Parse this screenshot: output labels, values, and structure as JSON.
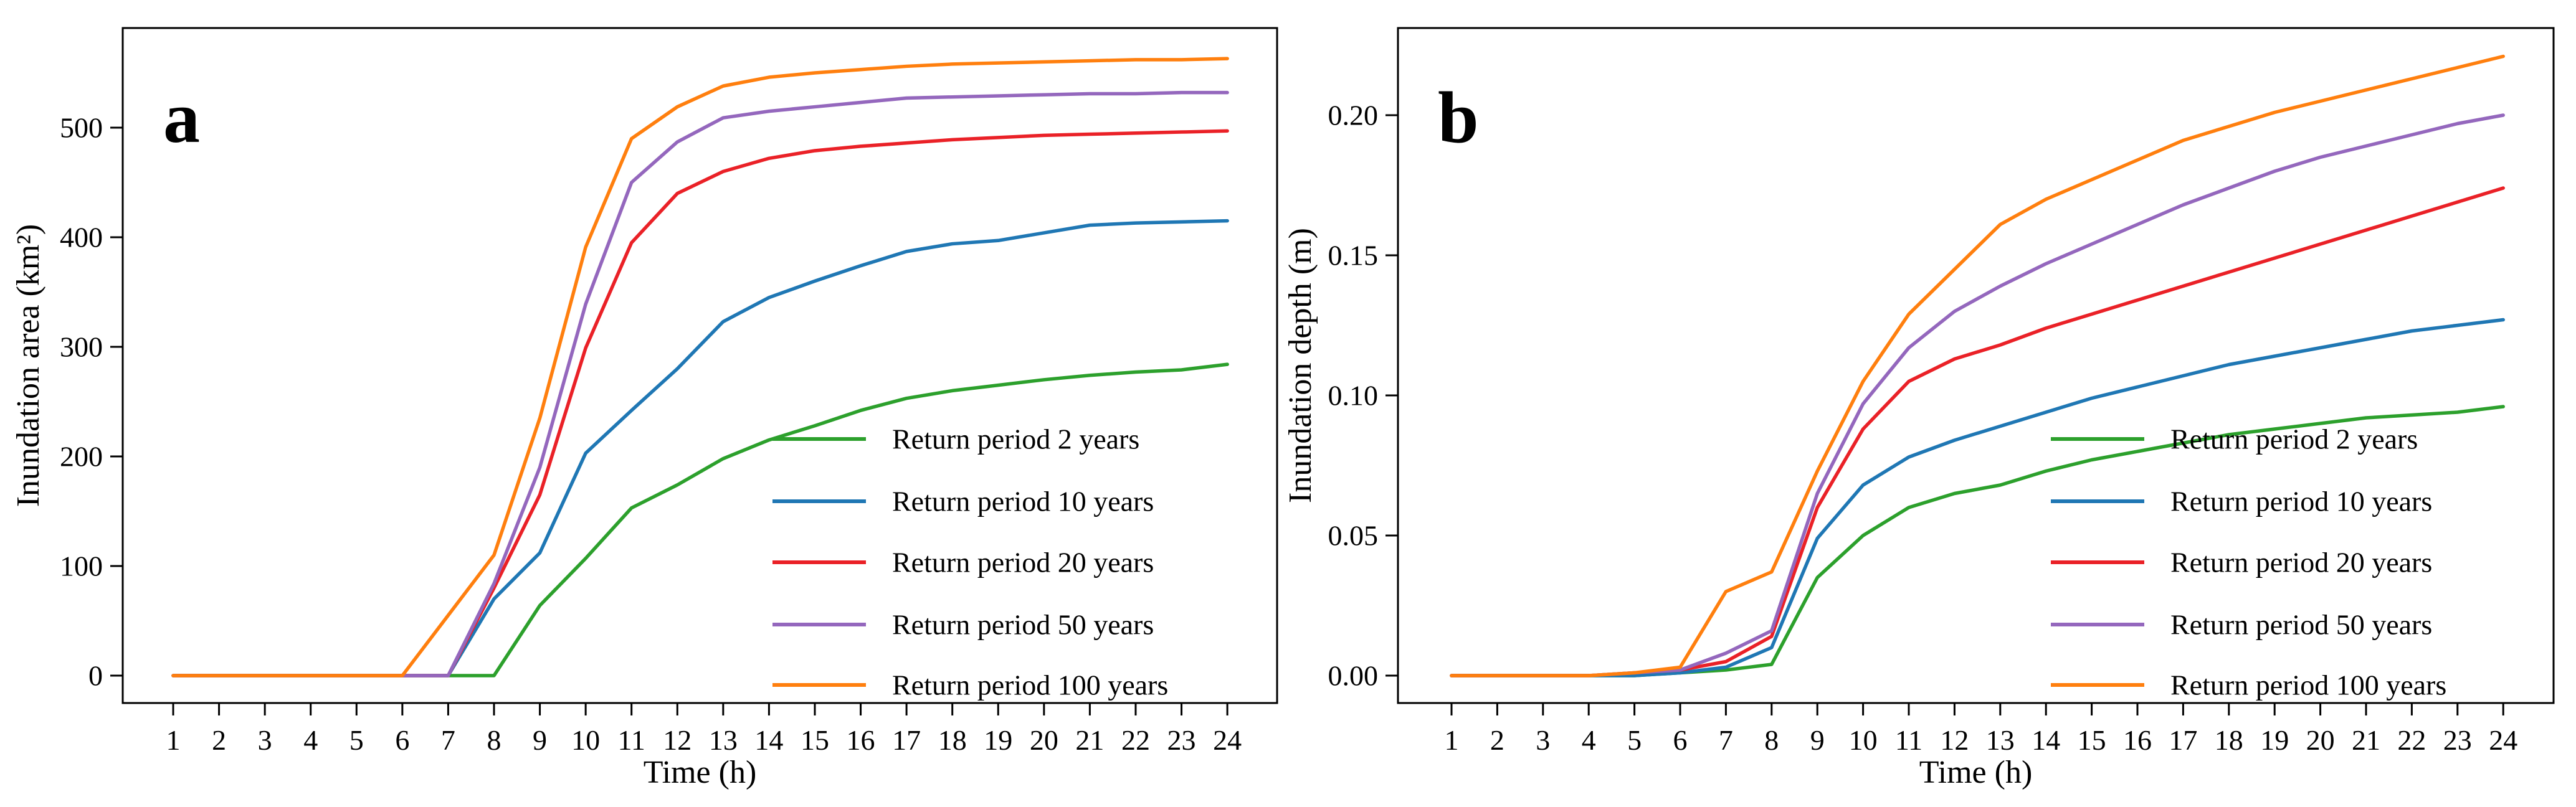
{
  "figure_type": "dual-panel line chart",
  "panels": [
    {
      "panel_label": "a",
      "y_axis_title": "Inundation area (km²)",
      "x_axis_title": "Time (h)",
      "y_tick_labels": [
        "0",
        "100",
        "200",
        "300",
        "400",
        "500"
      ],
      "x_tick_labels": [
        "1",
        "2",
        "3",
        "4",
        "5",
        "6",
        "7",
        "8",
        "9",
        "10",
        "11",
        "12",
        "13",
        "14",
        "15",
        "16",
        "17",
        "18",
        "19",
        "20",
        "21",
        "22",
        "23",
        "24"
      ]
    },
    {
      "panel_label": "b",
      "y_axis_title": "Inundation depth (m)",
      "x_axis_title": "Time (h)",
      "y_tick_labels": [
        "0.00",
        "0.05",
        "0.10",
        "0.15",
        "0.20"
      ],
      "x_tick_labels": [
        "1",
        "2",
        "3",
        "4",
        "5",
        "6",
        "7",
        "8",
        "9",
        "10",
        "11",
        "12",
        "13",
        "14",
        "15",
        "16",
        "17",
        "18",
        "19",
        "20",
        "21",
        "22",
        "23",
        "24"
      ]
    }
  ],
  "legend": {
    "entries": [
      {
        "label": "Return period 2 years",
        "color": "#2ca02c"
      },
      {
        "label": "Return period 10 years",
        "color": "#1f77b4"
      },
      {
        "label": "Return period 20 years",
        "color": "#ea2127"
      },
      {
        "label": "Return period 50 years",
        "color": "#9467bd"
      },
      {
        "label": "Return period 100 years",
        "color": "#ff7f0e"
      }
    ],
    "position": "lower right"
  },
  "chart_data": [
    {
      "type": "line",
      "title": "",
      "xlabel": "Time (h)",
      "ylabel": "Inundation area (km²)",
      "x": [
        1,
        2,
        3,
        4,
        5,
        6,
        7,
        8,
        9,
        10,
        11,
        12,
        13,
        14,
        15,
        16,
        17,
        18,
        19,
        20,
        21,
        22,
        23,
        24
      ],
      "x_ticks": [
        1,
        2,
        3,
        4,
        5,
        6,
        7,
        8,
        9,
        10,
        11,
        12,
        13,
        14,
        15,
        16,
        17,
        18,
        19,
        20,
        21,
        22,
        23,
        24
      ],
      "y_ticks": [
        0,
        100,
        200,
        300,
        400,
        500
      ],
      "ylim": [
        -25,
        592
      ],
      "xlim": [
        -0.1,
        25.1
      ],
      "grid": false,
      "legend_position": "lower right",
      "series": [
        {
          "name": "Return period 2 years",
          "color": "#2ca02c",
          "values": [
            0,
            0,
            0,
            0,
            0,
            0,
            0,
            0,
            64,
            107,
            153,
            174,
            198,
            215,
            228,
            242,
            253,
            260,
            265,
            270,
            274,
            277,
            279,
            284
          ]
        },
        {
          "name": "Return period 10 years",
          "color": "#1f77b4",
          "values": [
            0,
            0,
            0,
            0,
            0,
            0,
            0,
            70,
            112,
            203,
            242,
            280,
            323,
            345,
            360,
            374,
            387,
            394,
            397,
            404,
            411,
            413,
            414,
            415
          ]
        },
        {
          "name": "Return period 20 years",
          "color": "#ea2127",
          "values": [
            0,
            0,
            0,
            0,
            0,
            0,
            0,
            80,
            165,
            299,
            395,
            440,
            460,
            472,
            479,
            483,
            486,
            489,
            491,
            493,
            494,
            495,
            496,
            497
          ]
        },
        {
          "name": "Return period 50 years",
          "color": "#9467bd",
          "values": [
            0,
            0,
            0,
            0,
            0,
            0,
            0,
            84,
            190,
            339,
            450,
            487,
            509,
            515,
            519,
            523,
            527,
            528,
            529,
            530,
            531,
            531,
            532,
            532
          ]
        },
        {
          "name": "Return period 100 years",
          "color": "#ff7f0e",
          "values": [
            0,
            0,
            0,
            0,
            0,
            0,
            55,
            110,
            235,
            391,
            490,
            519,
            538,
            546,
            550,
            553,
            556,
            558,
            559,
            560,
            561,
            562,
            562,
            563
          ]
        }
      ]
    },
    {
      "type": "line",
      "title": "",
      "xlabel": "Time (h)",
      "ylabel": "Inundation depth (m)",
      "x": [
        1,
        2,
        3,
        4,
        5,
        6,
        7,
        8,
        9,
        10,
        11,
        12,
        13,
        14,
        15,
        16,
        17,
        18,
        19,
        20,
        21,
        22,
        23,
        24
      ],
      "x_ticks": [
        1,
        2,
        3,
        4,
        5,
        6,
        7,
        8,
        9,
        10,
        11,
        12,
        13,
        14,
        15,
        16,
        17,
        18,
        19,
        20,
        21,
        22,
        23,
        24
      ],
      "y_ticks": [
        0.0,
        0.05,
        0.1,
        0.15,
        0.2
      ],
      "ylim": [
        -0.01,
        0.231
      ],
      "xlim": [
        -0.1,
        25.1
      ],
      "grid": false,
      "legend_position": "lower right",
      "series": [
        {
          "name": "Return period 2 years",
          "color": "#2ca02c",
          "values": [
            0,
            0,
            0,
            0,
            0,
            0.001,
            0.002,
            0.004,
            0.035,
            0.05,
            0.06,
            0.065,
            0.068,
            0.073,
            0.077,
            0.08,
            0.083,
            0.086,
            0.088,
            0.09,
            0.092,
            0.093,
            0.094,
            0.096
          ]
        },
        {
          "name": "Return period 10 years",
          "color": "#1f77b4",
          "values": [
            0,
            0,
            0,
            0,
            0,
            0.001,
            0.003,
            0.01,
            0.049,
            0.068,
            0.078,
            0.084,
            0.089,
            0.094,
            0.099,
            0.103,
            0.107,
            0.111,
            0.114,
            0.117,
            0.12,
            0.123,
            0.125,
            0.127
          ]
        },
        {
          "name": "Return period 20 years",
          "color": "#ea2127",
          "values": [
            0,
            0,
            0,
            0,
            0.001,
            0.002,
            0.005,
            0.014,
            0.06,
            0.088,
            0.105,
            0.113,
            0.118,
            0.124,
            0.129,
            0.134,
            0.139,
            0.144,
            0.149,
            0.154,
            0.159,
            0.164,
            0.169,
            0.174
          ]
        },
        {
          "name": "Return period 50 years",
          "color": "#9467bd",
          "values": [
            0,
            0,
            0,
            0,
            0.001,
            0.002,
            0.008,
            0.016,
            0.065,
            0.097,
            0.117,
            0.13,
            0.139,
            0.147,
            0.154,
            0.161,
            0.168,
            0.174,
            0.18,
            0.185,
            0.189,
            0.193,
            0.197,
            0.2
          ]
        },
        {
          "name": "Return period 100 years",
          "color": "#ff7f0e",
          "values": [
            0,
            0,
            0,
            0,
            0.001,
            0.003,
            0.03,
            0.037,
            0.073,
            0.105,
            0.129,
            0.145,
            0.161,
            0.17,
            0.177,
            0.184,
            0.191,
            0.196,
            0.201,
            0.205,
            0.209,
            0.213,
            0.217,
            0.221
          ]
        }
      ]
    }
  ]
}
